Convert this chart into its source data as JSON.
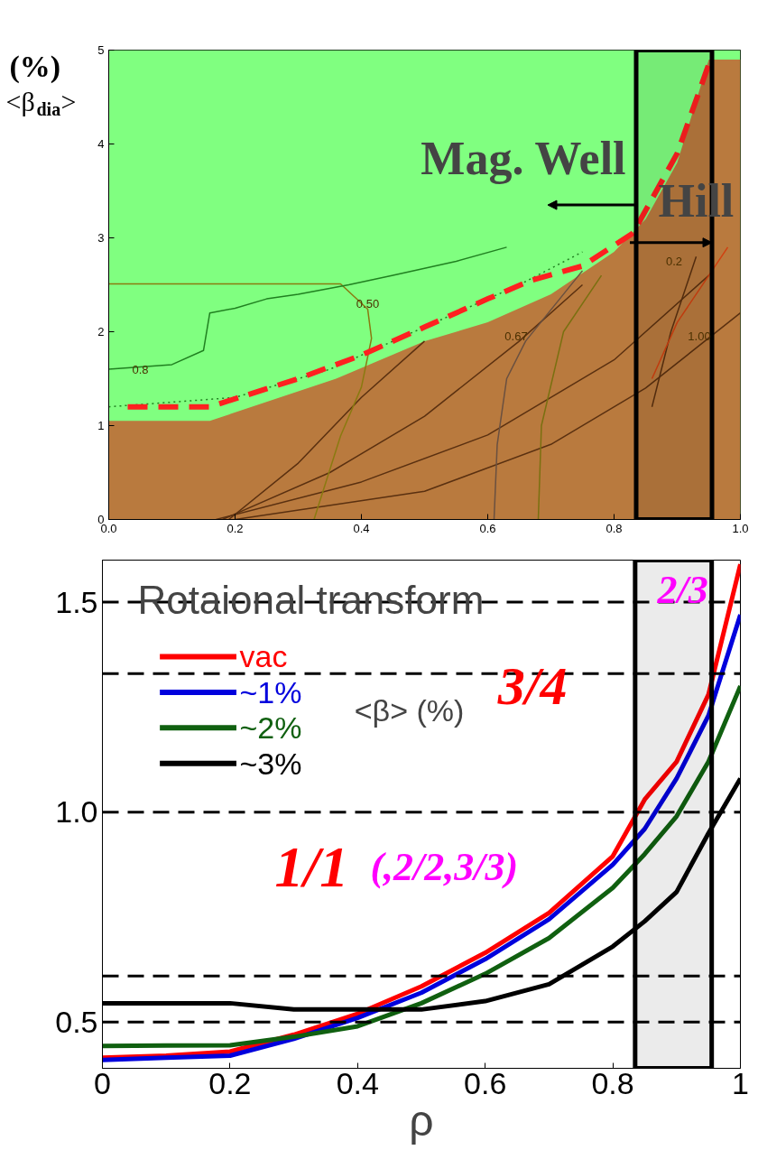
{
  "chart_data": [
    {
      "type": "area",
      "ylabel": "(%) <β$_{dia}$>",
      "xlim": [
        0,
        1
      ],
      "ylim": [
        0,
        5
      ],
      "xticks": [
        {
          "value": 0,
          "label": "0.0"
        },
        0.2,
        0.4,
        0.6,
        0.8,
        {
          "value": 1,
          "label": "1.0"
        }
      ],
      "yticks": [
        0,
        1,
        2,
        3,
        4,
        5
      ],
      "series": [
        {
          "type": "area",
          "color": "#b97a3e",
          "x": [
            0,
            0.16,
            0.36,
            0.5,
            0.6,
            0.7,
            0.8,
            0.85,
            0.9,
            0.95,
            1.0
          ],
          "values": [
            1.05,
            1.05,
            1.5,
            1.9,
            2.1,
            2.4,
            2.85,
            3.2,
            3.8,
            4.9,
            4.9
          ]
        },
        {
          "type": "line",
          "color": "#5a3010",
          "x": [
            0.17,
            0.4,
            0.6,
            0.8,
            0.95
          ],
          "values": [
            0,
            0.4,
            0.9,
            1.7,
            2.6
          ]
        },
        {
          "type": "line",
          "color": "#5a3010",
          "x": [
            0.18,
            0.35,
            0.5,
            0.65,
            0.75
          ],
          "values": [
            0,
            0.5,
            1.1,
            1.9,
            2.5
          ]
        },
        {
          "type": "line",
          "color": "#5a3010",
          "x": [
            0.19,
            0.3,
            0.4,
            0.5
          ],
          "values": [
            0,
            0.6,
            1.3,
            1.9
          ]
        },
        {
          "type": "line",
          "color": "#5a3010",
          "x": [
            0.2,
            0.5,
            0.7,
            0.85,
            1.0
          ],
          "values": [
            0,
            0.3,
            0.8,
            1.4,
            2.2
          ]
        },
        {
          "type": "line",
          "color": "#8a7a10",
          "x": [
            0,
            0.367,
            0.41,
            0.416,
            0.4,
            0.367,
            0.325
          ],
          "values": [
            2.51,
            2.51,
            2.24,
            1.93,
            1.41,
            0.89,
            0
          ]
        },
        {
          "type": "line",
          "color": "#6a5040",
          "x": [
            0.61,
            0.615,
            0.63,
            0.66,
            0.75
          ],
          "values": [
            0,
            0.8,
            1.5,
            1.9,
            2.65
          ]
        },
        {
          "type": "line",
          "color": "#7a7010",
          "x": [
            0.68,
            0.685,
            0.72,
            0.78
          ],
          "values": [
            0,
            1.0,
            2.0,
            2.6
          ]
        },
        {
          "type": "line",
          "color": "#5a3010",
          "x": [
            0.86,
            0.89,
            0.93
          ],
          "values": [
            1.2,
            2.0,
            2.8
          ]
        },
        {
          "type": "line",
          "color": "#d04010",
          "x": [
            0.86,
            0.9,
            0.95,
            0.98
          ],
          "values": [
            1.5,
            2.1,
            2.6,
            2.9
          ]
        },
        {
          "type": "line",
          "color": "#208020",
          "x": [
            0,
            0.1,
            0.15,
            0.16,
            0.2,
            0.25,
            0.3,
            0.38,
            0.45,
            0.55,
            0.63
          ],
          "values": [
            1.6,
            1.65,
            1.8,
            2.2,
            2.25,
            2.35,
            2.4,
            2.5,
            2.6,
            2.75,
            2.9
          ]
        },
        {
          "type": "line",
          "color": "#208020",
          "line_style": "dotted",
          "x": [
            0,
            0.2,
            0.35,
            0.5,
            0.65,
            0.75
          ],
          "values": [
            1.2,
            1.3,
            1.6,
            2.05,
            2.5,
            2.85
          ]
        },
        {
          "type": "line",
          "color": "#ff2020",
          "line_style": "dashed",
          "x": [
            0.03,
            0.16,
            0.3,
            0.4,
            0.5,
            0.6,
            0.67,
            0.75,
            0.83,
            0.9,
            0.95
          ],
          "values": [
            1.2,
            1.2,
            1.5,
            1.75,
            2.05,
            2.35,
            2.55,
            2.7,
            3.05,
            3.9,
            4.85
          ]
        }
      ],
      "bands": [
        {
          "axis": "y",
          "from": 0,
          "to": 5,
          "color": "#80ff80"
        },
        {
          "axis": "x",
          "from": 0.835,
          "to": 0.955,
          "color": "#000000"
        }
      ],
      "annotations": [
        "Mag. Well",
        {
          "text": "Hill",
          "x": 0.955,
          "y": 2.95
        },
        "0.50",
        "0.67",
        "1.00",
        "0.2",
        "0.8"
      ]
    },
    {
      "type": "line",
      "title": "Rotaional transform",
      "xlabel": "ρ",
      "legend_title": "<β> (%)",
      "legend": "top left",
      "xlim": [
        0,
        1
      ],
      "ylim": [
        0.39,
        1.6
      ],
      "xticks": [
        0,
        0.2,
        0.4,
        0.6,
        0.8,
        1
      ],
      "yticks": [
        {
          "value": 0.5,
          "label": "0.5"
        },
        {
          "value": 1.0,
          "label": "1.0"
        },
        {
          "value": 1.5,
          "label": "1.5"
        }
      ],
      "x": [
        0,
        0.1,
        0.2,
        0.3,
        0.4,
        0.5,
        0.6,
        0.7,
        0.8,
        0.85,
        0.9,
        0.95,
        1.0
      ],
      "series": [
        {
          "name": "vac",
          "color": "#ff0000",
          "values": [
            0.415,
            0.42,
            0.43,
            0.47,
            0.52,
            0.585,
            0.665,
            0.76,
            0.895,
            1.03,
            1.12,
            1.28,
            1.59
          ]
        },
        {
          "name": "~1%",
          "color": "#0000dd",
          "values": [
            0.41,
            0.415,
            0.42,
            0.46,
            0.51,
            0.57,
            0.65,
            0.745,
            0.875,
            0.96,
            1.08,
            1.23,
            1.47
          ]
        },
        {
          "name": "~2%",
          "color": "#106010",
          "values": [
            0.443,
            0.444,
            0.445,
            0.465,
            0.49,
            0.545,
            0.615,
            0.7,
            0.82,
            0.9,
            0.99,
            1.12,
            1.3
          ]
        },
        {
          "name": "~3%",
          "color": "#000000",
          "values": [
            0.545,
            0.545,
            0.545,
            0.53,
            0.53,
            0.53,
            0.55,
            0.59,
            0.68,
            0.74,
            0.81,
            0.95,
            1.08
          ]
        }
      ],
      "ref_lines": [
        {
          "axis": "y",
          "value": 1.5,
          "line_style": "dashed"
        },
        {
          "axis": "y",
          "value": 1.33,
          "line_style": "dashed"
        },
        {
          "axis": "y",
          "value": 1.0,
          "line_style": "dashed"
        },
        {
          "axis": "y",
          "value": 0.61,
          "line_style": "dashed"
        },
        {
          "axis": "y",
          "value": 0.5,
          "line_style": "dashed"
        }
      ],
      "bands": [
        {
          "axis": "x",
          "from": 0.835,
          "to": 0.955,
          "color": "#000000"
        }
      ],
      "annotations": [
        "2/3",
        "3/4",
        "1/1",
        "(,2/2,3/3)"
      ]
    }
  ]
}
